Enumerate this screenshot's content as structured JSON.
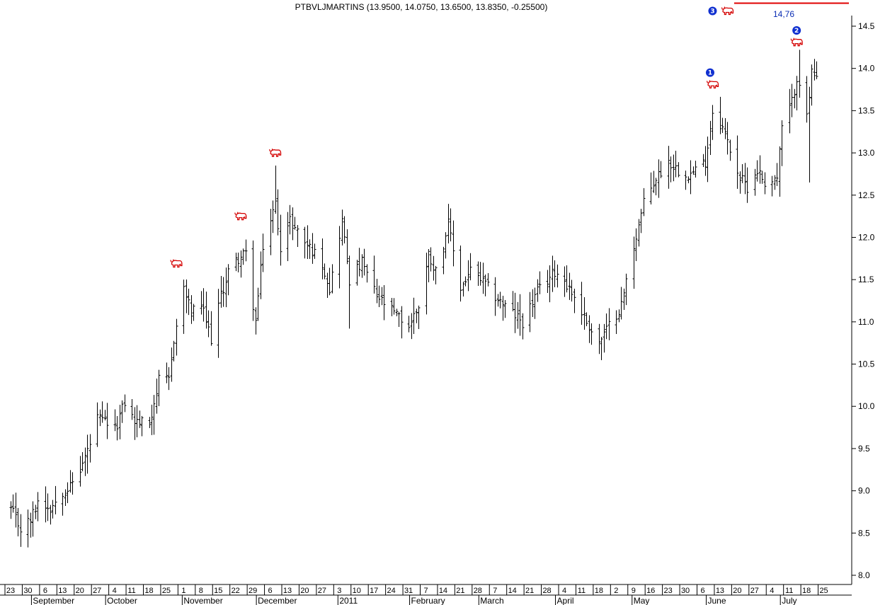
{
  "chart_data": {
    "type": "ohlc",
    "title": "PTBVLJMARTINS (13.9500, 14.0750, 13.6500, 13.8350, -0.25500)",
    "ylim": [
      7.9,
      14.75
    ],
    "y_ticks": [
      8.0,
      8.5,
      9.0,
      9.5,
      10.0,
      10.5,
      11.0,
      11.5,
      12.0,
      12.5,
      13.0,
      13.5,
      14.0,
      14.5
    ],
    "y_axis_side": "right",
    "grid": false,
    "x_start": "2010-08-23",
    "x_end": "2011-07-25",
    "week_ticks": [
      "23",
      "30",
      "6",
      "13",
      "20",
      "27",
      "4",
      "11",
      "18",
      "25",
      "1",
      "8",
      "15",
      "22",
      "29",
      "6",
      "13",
      "20",
      "27",
      "3",
      "10",
      "17",
      "24",
      "31",
      "7",
      "14",
      "21",
      "28",
      "7",
      "14",
      "21",
      "28",
      "4",
      "11",
      "18",
      "2",
      "9",
      "16",
      "23",
      "30",
      "6",
      "13",
      "20",
      "27",
      "4",
      "11",
      "18",
      "25"
    ],
    "months": [
      "September",
      "October",
      "November",
      "December",
      "2011",
      "February",
      "March",
      "April",
      "May",
      "June",
      "July"
    ],
    "target": {
      "label": "14,76",
      "value": 14.76,
      "x_from": "2011-06-06",
      "x_to": "2011-07-25",
      "color": "#e00000"
    },
    "wave_labels": [
      {
        "label": "1",
        "x": "2011-06-02",
        "y": 13.95
      },
      {
        "label": "2",
        "x": "2011-07-07",
        "y": 14.45
      },
      {
        "label": "3",
        "x": "2011-06-03",
        "y": 14.68
      }
    ],
    "signal_markers": [
      {
        "x": "2010-10-29",
        "y": 11.69,
        "icon": "bull-icon"
      },
      {
        "x": "2010-11-24",
        "y": 12.25,
        "icon": "bull-icon"
      },
      {
        "x": "2010-12-08",
        "y": 13.0,
        "icon": "bull-icon"
      },
      {
        "x": "2011-06-03",
        "y": 13.81,
        "icon": "bull-icon"
      },
      {
        "x": "2011-07-07",
        "y": 14.31,
        "icon": "bull-icon"
      },
      {
        "x": "2011-06-09",
        "y": 14.68,
        "icon": "bull-icon"
      }
    ],
    "close_path": [
      [
        "2010-08-23",
        8.78
      ],
      [
        "2010-08-27",
        8.55
      ],
      [
        "2010-08-31",
        8.65
      ],
      [
        "2010-09-03",
        8.88
      ],
      [
        "2010-09-08",
        8.8
      ],
      [
        "2010-09-13",
        9.0
      ],
      [
        "2010-09-16",
        9.05
      ],
      [
        "2010-09-20",
        9.25
      ],
      [
        "2010-09-24",
        9.55
      ],
      [
        "2010-09-27",
        9.85
      ],
      [
        "2010-10-01",
        9.8
      ],
      [
        "2010-10-04",
        9.72
      ],
      [
        "2010-10-08",
        10.05
      ],
      [
        "2010-10-12",
        9.82
      ],
      [
        "2010-10-18",
        9.8
      ],
      [
        "2010-10-22",
        10.3
      ],
      [
        "2010-10-26",
        10.3
      ],
      [
        "2010-10-28",
        10.8
      ],
      [
        "2010-11-01",
        11.4
      ],
      [
        "2010-11-04",
        11.1
      ],
      [
        "2010-11-08",
        11.2
      ],
      [
        "2010-11-12",
        10.8
      ],
      [
        "2010-11-15",
        11.2
      ],
      [
        "2010-11-19",
        11.6
      ],
      [
        "2010-11-23",
        11.75
      ],
      [
        "2010-11-26",
        11.8
      ],
      [
        "2010-11-30",
        11.0
      ],
      [
        "2010-12-03",
        11.9
      ],
      [
        "2010-12-08",
        12.4
      ],
      [
        "2010-12-10",
        11.9
      ],
      [
        "2010-12-14",
        12.2
      ],
      [
        "2010-12-20",
        11.95
      ],
      [
        "2010-12-27",
        11.7
      ],
      [
        "2010-12-30",
        11.4
      ],
      [
        "2011-01-04",
        12.2
      ],
      [
        "2011-01-07",
        11.5
      ],
      [
        "2011-01-12",
        11.7
      ],
      [
        "2011-01-18",
        11.3
      ],
      [
        "2011-01-25",
        11.1
      ],
      [
        "2011-01-31",
        10.95
      ],
      [
        "2011-02-04",
        11.2
      ],
      [
        "2011-02-08",
        11.8
      ],
      [
        "2011-02-11",
        11.6
      ],
      [
        "2011-02-16",
        12.15
      ],
      [
        "2011-02-21",
        11.4
      ],
      [
        "2011-02-25",
        11.6
      ],
      [
        "2011-03-01",
        11.5
      ],
      [
        "2011-03-07",
        11.3
      ],
      [
        "2011-03-14",
        11.1
      ],
      [
        "2011-03-18",
        11.0
      ],
      [
        "2011-03-24",
        11.35
      ],
      [
        "2011-03-31",
        11.6
      ],
      [
        "2011-04-04",
        11.5
      ],
      [
        "2011-04-08",
        11.3
      ],
      [
        "2011-04-13",
        11.0
      ],
      [
        "2011-04-18",
        10.75
      ],
      [
        "2011-04-22",
        10.95
      ],
      [
        "2011-04-27",
        11.2
      ],
      [
        "2011-05-02",
        11.9
      ],
      [
        "2011-05-06",
        12.4
      ],
      [
        "2011-05-11",
        12.7
      ],
      [
        "2011-05-16",
        12.9
      ],
      [
        "2011-05-20",
        12.8
      ],
      [
        "2011-05-25",
        12.75
      ],
      [
        "2011-05-31",
        12.9
      ],
      [
        "2011-06-03",
        13.5
      ],
      [
        "2011-06-07",
        13.3
      ],
      [
        "2011-06-10",
        13.05
      ],
      [
        "2011-06-14",
        12.7
      ],
      [
        "2011-06-17",
        12.6
      ],
      [
        "2011-06-21",
        12.8
      ],
      [
        "2011-06-24",
        12.65
      ],
      [
        "2011-06-29",
        12.7
      ],
      [
        "2011-07-01",
        13.3
      ],
      [
        "2011-07-05",
        13.6
      ],
      [
        "2011-07-07",
        13.9
      ],
      [
        "2011-07-08",
        13.85
      ],
      [
        "2011-07-11",
        13.4
      ],
      [
        "2011-07-13",
        13.95
      ],
      [
        "2011-07-15",
        13.84
      ]
    ],
    "spikes": [
      {
        "x": "2011-07-12",
        "low": 12.65
      },
      {
        "x": "2011-07-08",
        "high": 14.22
      },
      {
        "x": "2010-12-08",
        "high": 12.85
      },
      {
        "x": "2011-04-18",
        "low": 10.62
      },
      {
        "x": "2011-01-07",
        "low": 10.92
      },
      {
        "x": "2010-11-30",
        "low": 10.85
      }
    ]
  }
}
